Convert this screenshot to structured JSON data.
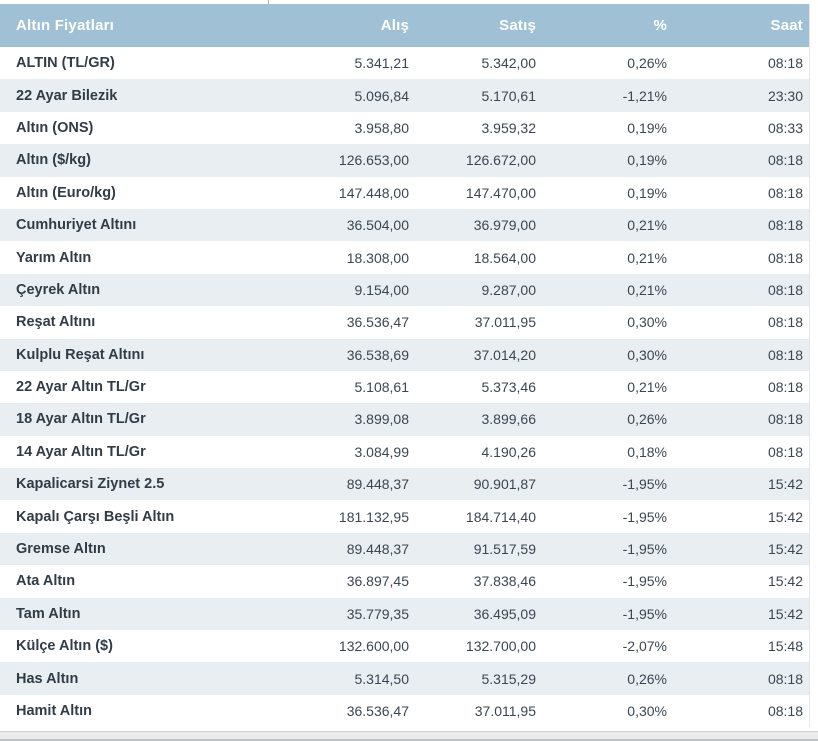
{
  "table": {
    "title": "Altın Fiyatları",
    "columns": {
      "alis": "Alış",
      "satis": "Satış",
      "pct": "%",
      "saat": "Saat"
    },
    "header_color": "#9fc0d5",
    "alt_row_color": "#e8eef1"
  },
  "rows": [
    {
      "name": "ALTIN (TL/GR)",
      "alis": "5.341,21",
      "satis": "5.342,00",
      "pct": "0,26%",
      "saat": "08:18"
    },
    {
      "name": "22 Ayar Bilezik",
      "alis": "5.096,84",
      "satis": "5.170,61",
      "pct": "-1,21%",
      "saat": "23:30"
    },
    {
      "name": "Altın (ONS)",
      "alis": "3.958,80",
      "satis": "3.959,32",
      "pct": "0,19%",
      "saat": "08:33"
    },
    {
      "name": "Altın ($/kg)",
      "alis": "126.653,00",
      "satis": "126.672,00",
      "pct": "0,19%",
      "saat": "08:18"
    },
    {
      "name": "Altın (Euro/kg)",
      "alis": "147.448,00",
      "satis": "147.470,00",
      "pct": "0,19%",
      "saat": "08:18"
    },
    {
      "name": "Cumhuriyet Altını",
      "alis": "36.504,00",
      "satis": "36.979,00",
      "pct": "0,21%",
      "saat": "08:18"
    },
    {
      "name": "Yarım Altın",
      "alis": "18.308,00",
      "satis": "18.564,00",
      "pct": "0,21%",
      "saat": "08:18"
    },
    {
      "name": "Çeyrek Altın",
      "alis": "9.154,00",
      "satis": "9.287,00",
      "pct": "0,21%",
      "saat": "08:18"
    },
    {
      "name": "Reşat Altını",
      "alis": "36.536,47",
      "satis": "37.011,95",
      "pct": "0,30%",
      "saat": "08:18"
    },
    {
      "name": "Kulplu Reşat Altını",
      "alis": "36.538,69",
      "satis": "37.014,20",
      "pct": "0,30%",
      "saat": "08:18"
    },
    {
      "name": "22 Ayar Altın TL/Gr",
      "alis": "5.108,61",
      "satis": "5.373,46",
      "pct": "0,21%",
      "saat": "08:18"
    },
    {
      "name": "18 Ayar Altın TL/Gr",
      "alis": "3.899,08",
      "satis": "3.899,66",
      "pct": "0,26%",
      "saat": "08:18"
    },
    {
      "name": "14 Ayar Altın TL/Gr",
      "alis": "3.084,99",
      "satis": "4.190,26",
      "pct": "0,18%",
      "saat": "08:18"
    },
    {
      "name": "Kapalicarsi Ziynet 2.5",
      "alis": "89.448,37",
      "satis": "90.901,87",
      "pct": "-1,95%",
      "saat": "15:42"
    },
    {
      "name": "Kapalı Çarşı Beşli Altın",
      "alis": "181.132,95",
      "satis": "184.714,40",
      "pct": "-1,95%",
      "saat": "15:42"
    },
    {
      "name": "Gremse Altın",
      "alis": "89.448,37",
      "satis": "91.517,59",
      "pct": "-1,95%",
      "saat": "15:42"
    },
    {
      "name": "Ata Altın",
      "alis": "36.897,45",
      "satis": "37.838,46",
      "pct": "-1,95%",
      "saat": "15:42"
    },
    {
      "name": "Tam Altın",
      "alis": "35.779,35",
      "satis": "36.495,09",
      "pct": "-1,95%",
      "saat": "15:42"
    },
    {
      "name": "Külçe Altın ($)",
      "alis": "132.600,00",
      "satis": "132.700,00",
      "pct": "-2,07%",
      "saat": "15:48"
    },
    {
      "name": "Has Altın",
      "alis": "5.314,50",
      "satis": "5.315,29",
      "pct": "0,26%",
      "saat": "08:18"
    },
    {
      "name": "Hamit Altın",
      "alis": "36.536,47",
      "satis": "37.011,95",
      "pct": "0,30%",
      "saat": "08:18"
    }
  ]
}
